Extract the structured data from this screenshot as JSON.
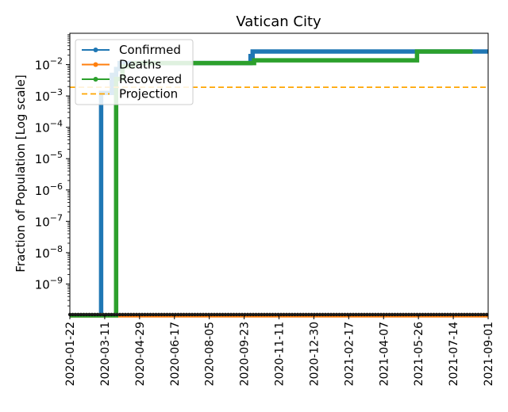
{
  "chart_data": {
    "type": "line",
    "title": "Vatican City",
    "xlabel": "",
    "ylabel": "Fraction of Population [Log scale]",
    "yscale": "log",
    "ylim": [
      1e-10,
      0.1
    ],
    "xlim": [
      "2020-01-22",
      "2021-09-01"
    ],
    "grid": false,
    "legend_location": "upper-left",
    "x_ticks": [
      "2020-01-22",
      "2020-03-11",
      "2020-04-29",
      "2020-06-17",
      "2020-08-05",
      "2020-09-23",
      "2020-11-11",
      "2020-12-30",
      "2021-02-17",
      "2021-04-07",
      "2021-05-26",
      "2021-07-14",
      "2021-09-01"
    ],
    "y_ticks": [
      {
        "value": 1e-09,
        "base": "10",
        "exp": "−9"
      },
      {
        "value": 1e-08,
        "base": "10",
        "exp": "−8"
      },
      {
        "value": 1e-07,
        "base": "10",
        "exp": "−7"
      },
      {
        "value": 1e-06,
        "base": "10",
        "exp": "−6"
      },
      {
        "value": 1e-05,
        "base": "10",
        "exp": "−5"
      },
      {
        "value": 0.0001,
        "base": "10",
        "exp": "−4"
      },
      {
        "value": 0.001,
        "base": "10",
        "exp": "−3"
      },
      {
        "value": 0.01,
        "base": "10",
        "exp": "−2"
      }
    ],
    "series": [
      {
        "name": "Confirmed",
        "color": "#1f77b4",
        "style": "solid-marker",
        "steps": [
          [
            "2020-01-22",
            1e-10
          ],
          [
            "2020-03-06",
            1e-10
          ],
          [
            "2020-03-06",
            0.00125
          ],
          [
            "2020-03-21",
            0.00125
          ],
          [
            "2020-03-21",
            0.0047
          ],
          [
            "2020-03-27",
            0.0047
          ],
          [
            "2020-03-27",
            0.00725
          ],
          [
            "2020-04-01",
            0.00725
          ],
          [
            "2020-04-01",
            0.0112
          ],
          [
            "2020-10-02",
            0.0112
          ],
          [
            "2020-10-02",
            0.0187
          ],
          [
            "2020-10-05",
            0.0187
          ],
          [
            "2020-10-05",
            0.0262
          ],
          [
            "2021-09-01",
            0.0262
          ]
        ]
      },
      {
        "name": "Deaths",
        "color": "#ff7f0e",
        "style": "solid-marker",
        "steps": [
          [
            "2020-01-22",
            1e-10
          ],
          [
            "2021-09-01",
            1e-10
          ]
        ]
      },
      {
        "name": "Recovered",
        "color": "#2ca02c",
        "style": "solid-marker",
        "steps": [
          [
            "2020-01-22",
            1e-10
          ],
          [
            "2020-03-27",
            1e-10
          ],
          [
            "2020-03-27",
            0.0035
          ],
          [
            "2020-04-05",
            0.0035
          ],
          [
            "2020-04-05",
            0.0087
          ],
          [
            "2020-04-20",
            0.0087
          ],
          [
            "2020-04-20",
            0.0112
          ],
          [
            "2020-10-07",
            0.0112
          ],
          [
            "2020-10-07",
            0.0137
          ],
          [
            "2021-05-24",
            0.0137
          ],
          [
            "2021-05-24",
            0.0262
          ],
          [
            "2021-08-10",
            0.0262
          ]
        ]
      },
      {
        "name": "Projection",
        "color": "#ffa500",
        "style": "dashed",
        "steps": [
          [
            "2020-01-22",
            0.0019
          ],
          [
            "2021-09-01",
            0.0019
          ]
        ]
      }
    ]
  }
}
